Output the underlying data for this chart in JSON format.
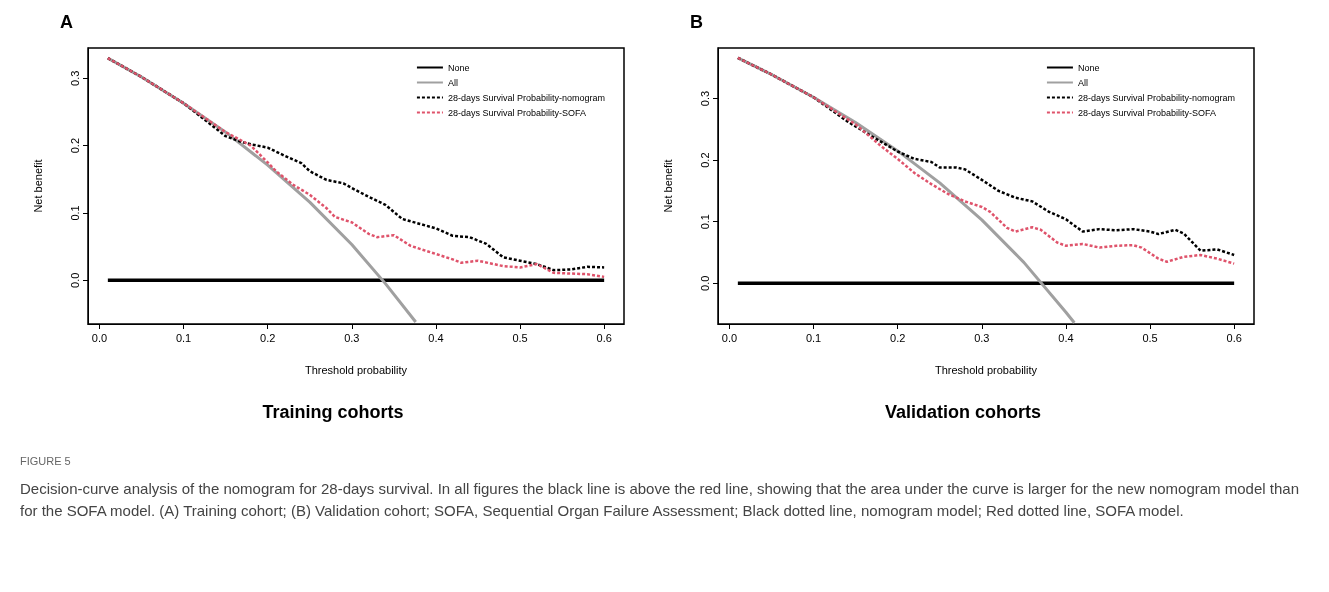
{
  "chart_data": [
    {
      "type": "line",
      "title": "Training cohorts",
      "xlabel": "Threshold probability",
      "ylabel": "Net benefit",
      "annotations": [
        "A",
        "FIGURE 5",
        "Decision-curve analysis of the nomogram for 28-days survival. In all figures the black line is above the red line, showing that the area under the curve is larger for the new nomogram model than for the SOFA model. (A) Training cohort; (B) Validation cohort; SOFA, Sequential Organ Failure Assessment; Black dotted line, nomogram model; Red dotted line, SOFA model."
      ],
      "xlim": [
        -0.0136,
        0.6236
      ],
      "ylim": [
        -0.065,
        0.345
      ],
      "xticks": [
        {
          "value": 0,
          "label": "0.0"
        },
        {
          "value": 0.1,
          "label": "0.1"
        },
        {
          "value": 0.2,
          "label": "0.2"
        },
        {
          "value": 0.3,
          "label": "0.3"
        },
        {
          "value": 0.4,
          "label": "0.4"
        },
        {
          "value": 0.5,
          "label": "0.5"
        },
        {
          "value": 0.6,
          "label": "0.6"
        }
      ],
      "yticks": [
        {
          "value": 0,
          "label": "0.0"
        },
        {
          "value": 0.1,
          "label": "0.1"
        },
        {
          "value": 0.2,
          "label": "0.2"
        },
        {
          "value": 0.3,
          "label": "0.3"
        }
      ],
      "legend": "top right",
      "grid": false,
      "series": [
        {
          "name": "None",
          "color": "#000000",
          "line_style": "solid",
          "x": [
            0.01,
            0.6
          ],
          "values": [
            0,
            0
          ]
        },
        {
          "name": "All",
          "color": "#a0a0a0",
          "line_style": "solid",
          "x": [
            0.01,
            0.05,
            0.1,
            0.15,
            0.2,
            0.25,
            0.3,
            0.34,
            0.376
          ],
          "values": [
            0.33,
            0.302,
            0.263,
            0.22,
            0.171,
            0.116,
            0.053,
            -0.005,
            -0.062
          ]
        },
        {
          "name": "28-days Survival Probability-nomogram",
          "color": "#000000",
          "line_style": "dashed",
          "x": [
            0.01,
            0.05,
            0.1,
            0.15,
            0.17,
            0.18,
            0.2,
            0.22,
            0.24,
            0.25,
            0.27,
            0.29,
            0.3,
            0.32,
            0.34,
            0.36,
            0.38,
            0.4,
            0.42,
            0.44,
            0.46,
            0.48,
            0.5,
            0.52,
            0.54,
            0.56,
            0.58,
            0.6
          ],
          "values": [
            0.33,
            0.302,
            0.263,
            0.214,
            0.205,
            0.202,
            0.197,
            0.185,
            0.174,
            0.162,
            0.149,
            0.144,
            0.137,
            0.124,
            0.112,
            0.091,
            0.084,
            0.077,
            0.066,
            0.064,
            0.054,
            0.034,
            0.029,
            0.024,
            0.015,
            0.016,
            0.02,
            0.019
          ]
        },
        {
          "name": "28-days Survival Probability-SOFA",
          "color": "#df536b",
          "line_style": "dashed",
          "x": [
            0.01,
            0.05,
            0.1,
            0.15,
            0.18,
            0.2,
            0.21,
            0.23,
            0.25,
            0.27,
            0.28,
            0.3,
            0.32,
            0.33,
            0.35,
            0.37,
            0.4,
            0.42,
            0.43,
            0.45,
            0.48,
            0.5,
            0.52,
            0.54,
            0.56,
            0.58,
            0.6
          ],
          "values": [
            0.33,
            0.302,
            0.263,
            0.22,
            0.2,
            0.175,
            0.162,
            0.142,
            0.127,
            0.107,
            0.094,
            0.086,
            0.069,
            0.064,
            0.067,
            0.051,
            0.039,
            0.031,
            0.026,
            0.029,
            0.021,
            0.019,
            0.024,
            0.011,
            0.01,
            0.009,
            0.005
          ]
        }
      ]
    },
    {
      "type": "line",
      "title": "Validation cohorts",
      "xlabel": "Threshold probability",
      "ylabel": "Net benefit",
      "annotations": [
        "B"
      ],
      "xlim": [
        -0.0136,
        0.6236
      ],
      "ylim": [
        -0.066,
        0.382
      ],
      "xticks": [
        {
          "value": 0,
          "label": "0.0"
        },
        {
          "value": 0.1,
          "label": "0.1"
        },
        {
          "value": 0.2,
          "label": "0.2"
        },
        {
          "value": 0.3,
          "label": "0.3"
        },
        {
          "value": 0.4,
          "label": "0.4"
        },
        {
          "value": 0.5,
          "label": "0.5"
        },
        {
          "value": 0.6,
          "label": "0.6"
        }
      ],
      "yticks": [
        {
          "value": 0,
          "label": "0.0"
        },
        {
          "value": 0.1,
          "label": "0.1"
        },
        {
          "value": 0.2,
          "label": "0.2"
        },
        {
          "value": 0.3,
          "label": "0.3"
        }
      ],
      "legend": "top right",
      "grid": false,
      "series": [
        {
          "name": "None",
          "color": "#000000",
          "line_style": "solid",
          "x": [
            0.01,
            0.6
          ],
          "values": [
            0,
            0
          ]
        },
        {
          "name": "All",
          "color": "#a0a0a0",
          "line_style": "solid",
          "x": [
            0.01,
            0.05,
            0.1,
            0.15,
            0.2,
            0.25,
            0.3,
            0.35,
            0.4,
            0.41
          ],
          "values": [
            0.366,
            0.339,
            0.302,
            0.261,
            0.215,
            0.163,
            0.103,
            0.034,
            -0.047,
            -0.064
          ]
        },
        {
          "name": "28-days Survival Probability-nomogram",
          "color": "#000000",
          "line_style": "dashed",
          "x": [
            0.01,
            0.05,
            0.1,
            0.14,
            0.17,
            0.2,
            0.22,
            0.24,
            0.25,
            0.27,
            0.28,
            0.3,
            0.32,
            0.34,
            0.36,
            0.38,
            0.4,
            0.42,
            0.44,
            0.46,
            0.48,
            0.5,
            0.51,
            0.53,
            0.54,
            0.56,
            0.58,
            0.6
          ],
          "values": [
            0.366,
            0.339,
            0.302,
            0.263,
            0.238,
            0.214,
            0.202,
            0.197,
            0.188,
            0.188,
            0.185,
            0.168,
            0.15,
            0.139,
            0.133,
            0.116,
            0.104,
            0.084,
            0.088,
            0.086,
            0.088,
            0.084,
            0.08,
            0.087,
            0.081,
            0.053,
            0.055,
            0.046
          ]
        },
        {
          "name": "28-days Survival Probability-SOFA",
          "color": "#df536b",
          "line_style": "dashed",
          "x": [
            0.01,
            0.05,
            0.1,
            0.15,
            0.18,
            0.2,
            0.22,
            0.24,
            0.26,
            0.28,
            0.3,
            0.31,
            0.33,
            0.34,
            0.36,
            0.37,
            0.39,
            0.4,
            0.42,
            0.44,
            0.46,
            0.48,
            0.49,
            0.51,
            0.52,
            0.54,
            0.56,
            0.58,
            0.6
          ],
          "values": [
            0.366,
            0.339,
            0.302,
            0.258,
            0.223,
            0.202,
            0.179,
            0.161,
            0.145,
            0.133,
            0.124,
            0.116,
            0.09,
            0.084,
            0.091,
            0.087,
            0.066,
            0.061,
            0.064,
            0.058,
            0.061,
            0.062,
            0.058,
            0.04,
            0.035,
            0.043,
            0.046,
            0.04,
            0.032
          ]
        }
      ]
    }
  ]
}
